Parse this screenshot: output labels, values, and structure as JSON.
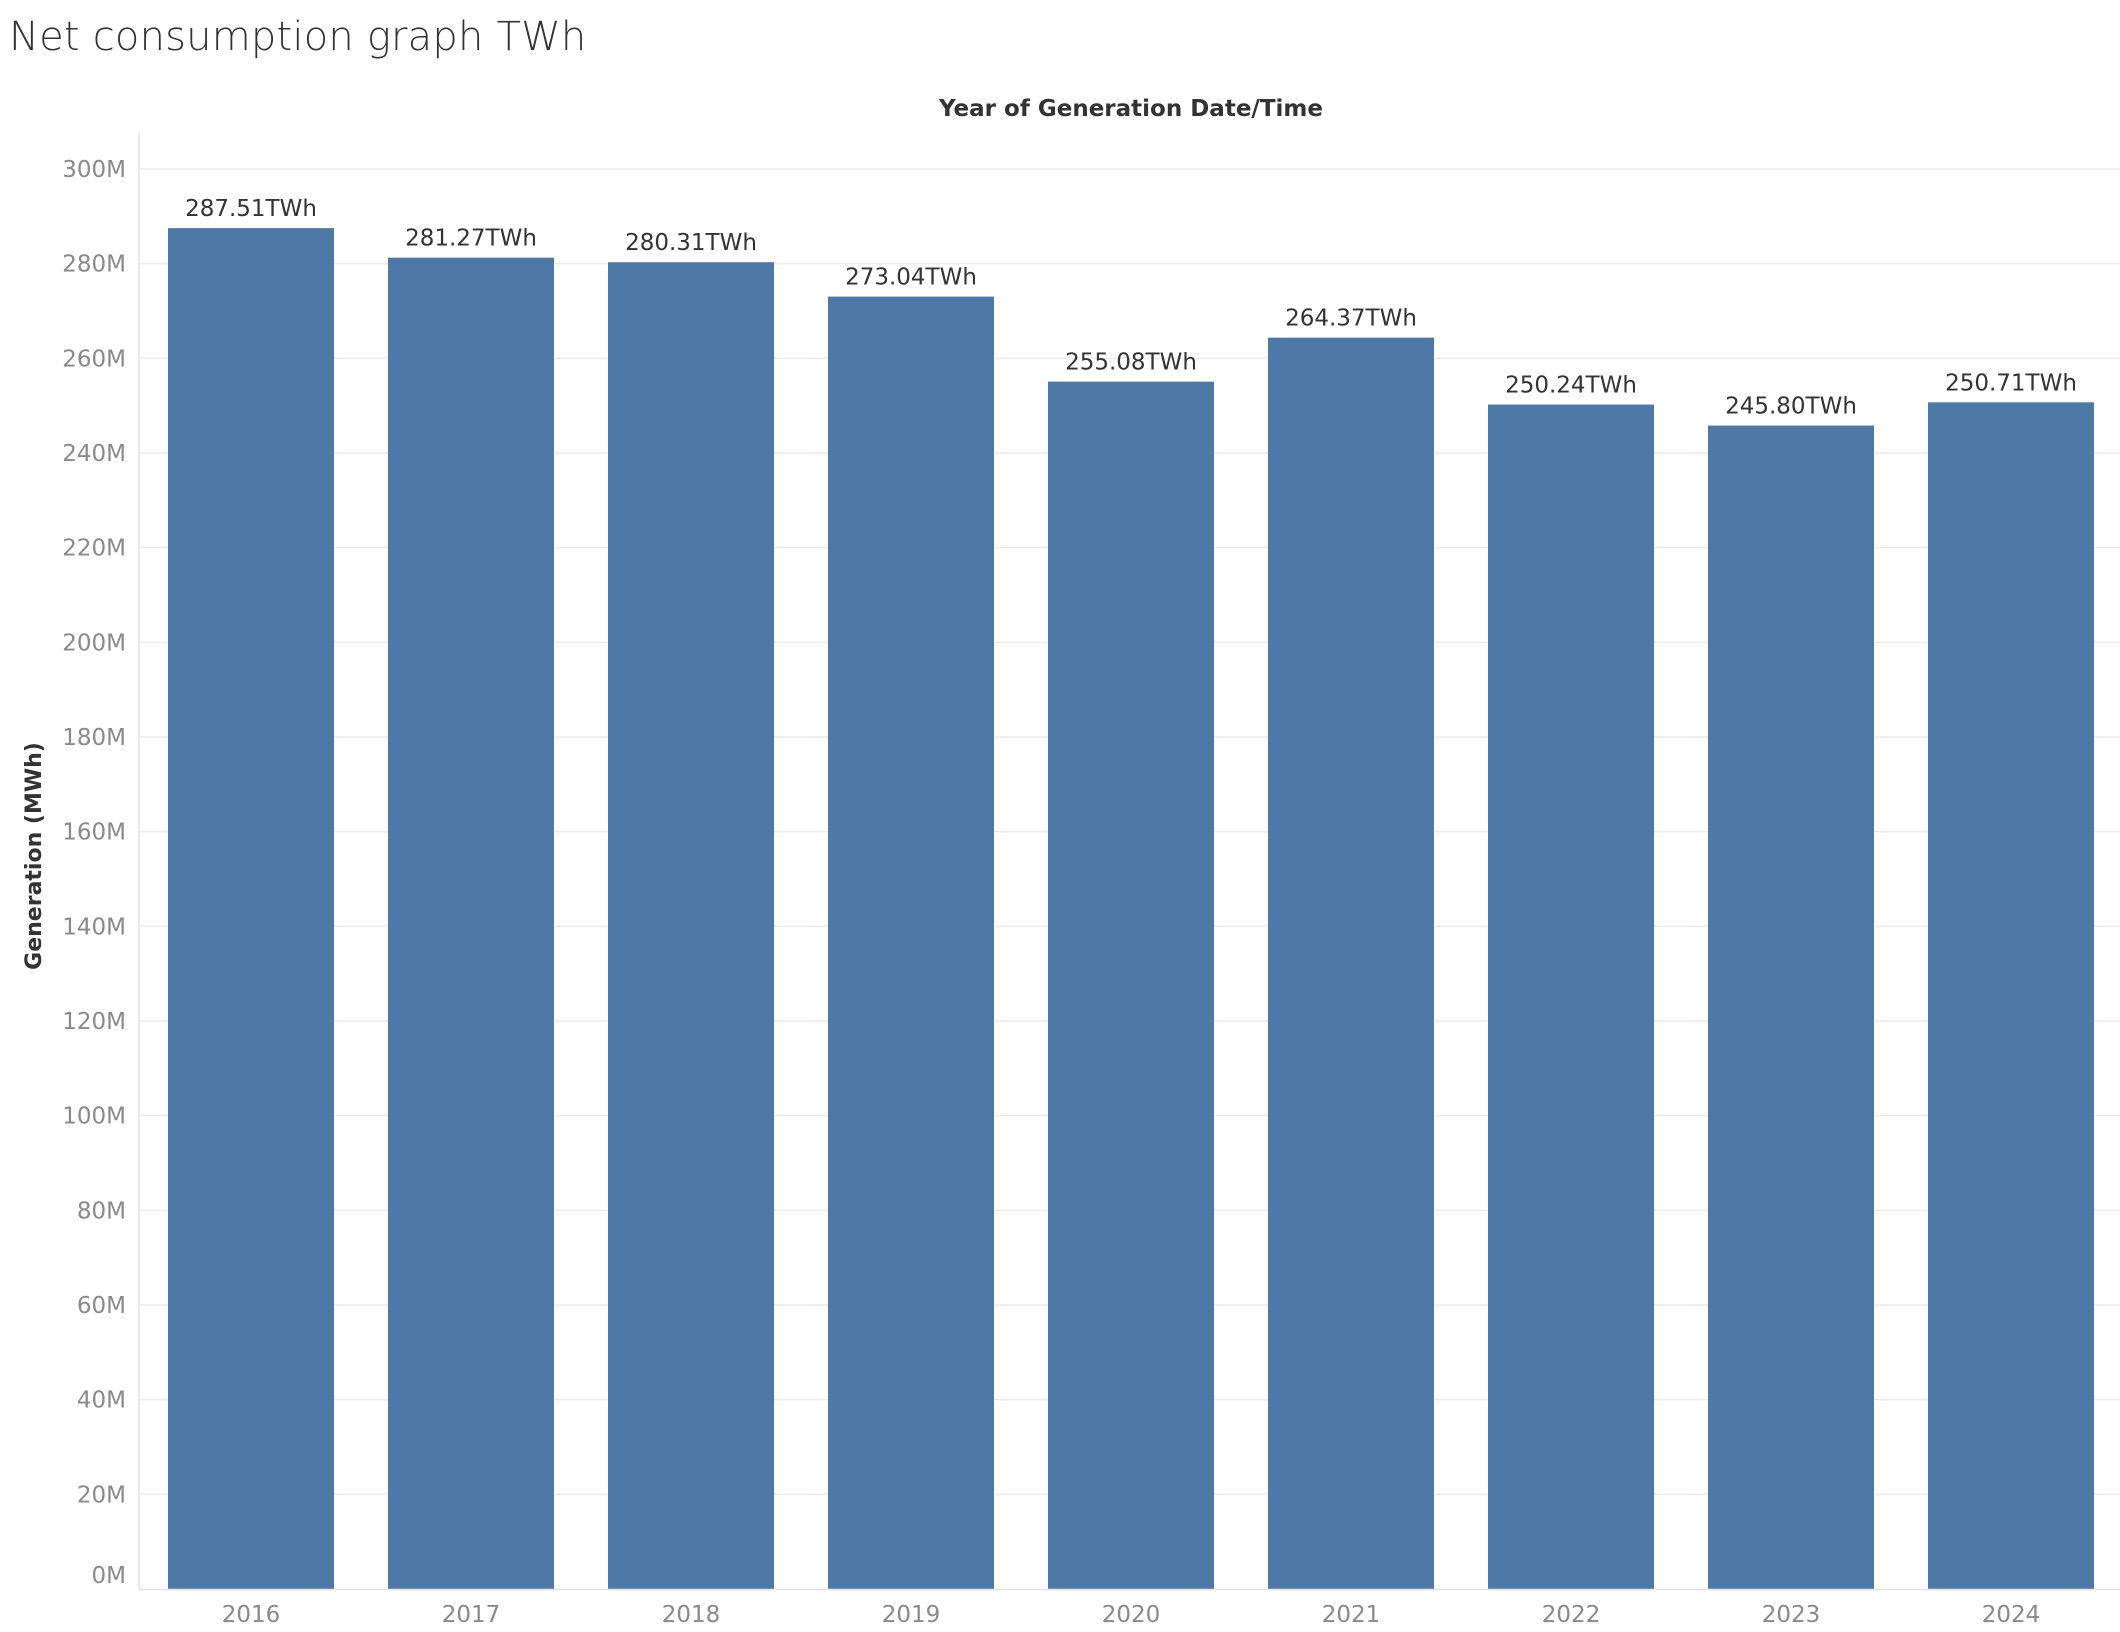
{
  "page": {
    "title": "Net consumption graph TWh"
  },
  "chart_data": {
    "type": "bar",
    "title": "",
    "column_header": "Year of Generation Date/Time",
    "ylabel": "Generation (MWh)",
    "xlabel": "",
    "categories": [
      "2016",
      "2017",
      "2018",
      "2019",
      "2020",
      "2021",
      "2022",
      "2023",
      "2024"
    ],
    "values": [
      287.51,
      281.27,
      280.31,
      273.04,
      255.08,
      264.37,
      250.24,
      245.8,
      250.71
    ],
    "value_labels": [
      "287.51TWh",
      "281.27TWh",
      "280.31TWh",
      "273.04TWh",
      "255.08TWh",
      "264.37TWh",
      "250.24TWh",
      "245.80TWh",
      "250.71TWh"
    ],
    "y_ticks": [
      0,
      20,
      40,
      60,
      80,
      100,
      120,
      140,
      160,
      180,
      200,
      220,
      240,
      260,
      280,
      300
    ],
    "y_tick_labels": [
      "0M",
      "20M",
      "40M",
      "60M",
      "80M",
      "100M",
      "120M",
      "140M",
      "160M",
      "180M",
      "200M",
      "220M",
      "240M",
      "260M",
      "280M",
      "300M"
    ],
    "ylim": [
      0,
      300
    ],
    "grid": true,
    "legend": "none",
    "bar_color": "#4e79a7"
  }
}
